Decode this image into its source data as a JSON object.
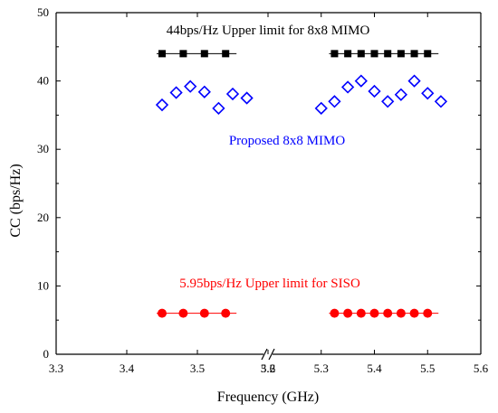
{
  "chart_data": {
    "type": "scatter",
    "title": "",
    "xlabel": "Frequency (GHz)",
    "ylabel": "CC (bps/Hz)",
    "ylim": [
      0,
      50
    ],
    "y_ticks": [
      "0",
      "10",
      "20",
      "30",
      "40",
      "50"
    ],
    "x_axis_break": true,
    "x_segments": [
      {
        "range": [
          3.3,
          3.6
        ],
        "ticks": [
          "3.3",
          "3.4",
          "3.5",
          "3.6"
        ]
      },
      {
        "range": [
          5.2,
          5.6
        ],
        "ticks": [
          "5.2",
          "5.3",
          "5.4",
          "5.5",
          "5.6"
        ]
      }
    ],
    "grid": false,
    "annotations": [
      {
        "text": "44bps/Hz Upper limit for 8x8 MIMO",
        "color": "#000000"
      },
      {
        "text": "Proposed 8x8 MIMO",
        "color": "#0000ff"
      },
      {
        "text": "5.95bps/Hz Upper limit for SISO",
        "color": "#ff0000"
      }
    ],
    "series": [
      {
        "marker": "square-filled",
        "color": "#000000",
        "line": true,
        "segments": [
          [
            [
              3.45,
              44
            ],
            [
              3.48,
              44
            ],
            [
              3.51,
              44
            ],
            [
              3.54,
              44
            ]
          ],
          [
            [
              5.325,
              44
            ],
            [
              5.35,
              44
            ],
            [
              5.375,
              44
            ],
            [
              5.4,
              44
            ],
            [
              5.425,
              44
            ],
            [
              5.45,
              44
            ],
            [
              5.475,
              44
            ],
            [
              5.5,
              44
            ]
          ]
        ]
      },
      {
        "marker": "diamond-open",
        "color": "#0000ff",
        "line": false,
        "segments": [
          [
            [
              3.45,
              36.5
            ],
            [
              3.47,
              38.3
            ],
            [
              3.49,
              39.2
            ],
            [
              3.51,
              38.4
            ],
            [
              3.53,
              36.0
            ],
            [
              3.55,
              38.1
            ],
            [
              3.57,
              37.5
            ]
          ],
          [
            [
              5.3,
              36.0
            ],
            [
              5.325,
              37.0
            ],
            [
              5.35,
              39.1
            ],
            [
              5.375,
              40.0
            ],
            [
              5.4,
              38.5
            ],
            [
              5.425,
              37.0
            ],
            [
              5.45,
              38.0
            ],
            [
              5.475,
              40.0
            ],
            [
              5.5,
              38.2
            ],
            [
              5.525,
              37.0
            ]
          ]
        ]
      },
      {
        "marker": "circle-filled",
        "color": "#ff0000",
        "line": true,
        "segments": [
          [
            [
              3.45,
              6
            ],
            [
              3.48,
              6
            ],
            [
              3.51,
              6
            ],
            [
              3.54,
              6
            ]
          ],
          [
            [
              5.325,
              6
            ],
            [
              5.35,
              6
            ],
            [
              5.375,
              6
            ],
            [
              5.4,
              6
            ],
            [
              5.425,
              6
            ],
            [
              5.45,
              6
            ],
            [
              5.475,
              6
            ],
            [
              5.5,
              6
            ]
          ]
        ]
      }
    ]
  }
}
